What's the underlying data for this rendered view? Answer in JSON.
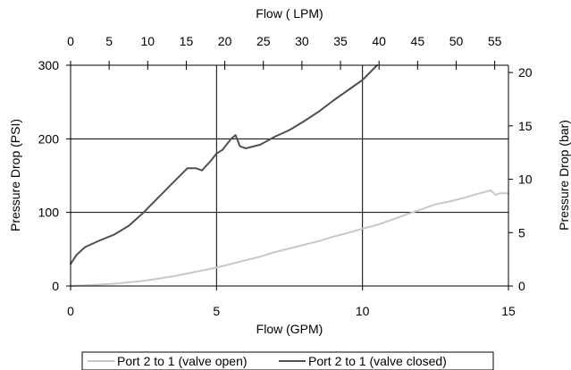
{
  "chart_data": {
    "type": "line",
    "title": "",
    "xlabel": "Flow (GPM)",
    "ylabel": "Pressure Drop (PSI)",
    "x2label": "Flow ( LPM)",
    "y2label": "Pressure Drop (bar)",
    "xlim": [
      0,
      15
    ],
    "ylim": [
      0,
      300
    ],
    "x2lim": [
      0,
      56.78
    ],
    "y2lim": [
      0,
      20.68
    ],
    "x_ticks": [
      "0",
      "5",
      "10",
      "15"
    ],
    "y_ticks": [
      "0",
      "100",
      "200",
      "300"
    ],
    "x2_ticks": [
      "0",
      "5",
      "10",
      "15",
      "20",
      "25",
      "30",
      "35",
      "40",
      "45",
      "50",
      "55"
    ],
    "y2_ticks": [
      "0",
      "5",
      "10",
      "15",
      "20"
    ],
    "grid": true,
    "legend_position": "bottom",
    "series": [
      {
        "name": "Port 2 to 1 (valve open)",
        "color": "#c8c8c8",
        "x": [
          0,
          0.5,
          1,
          1.5,
          2,
          2.5,
          3,
          3.5,
          4,
          4.5,
          5,
          5.5,
          6,
          6.5,
          7,
          7.5,
          8,
          8.5,
          9,
          9.5,
          10,
          10.5,
          11,
          11.5,
          12,
          12.5,
          13,
          13.5,
          14,
          14.4,
          14.55,
          14.7,
          15
        ],
        "y": [
          0,
          1,
          2,
          3,
          5,
          7,
          10,
          13,
          17,
          21,
          25,
          30,
          35,
          40,
          46,
          51,
          56,
          61,
          67,
          72,
          78,
          83,
          90,
          97,
          104,
          111,
          115,
          120,
          126,
          130,
          124,
          126,
          126
        ]
      },
      {
        "name": "Port 2 to 1 (valve closed)",
        "color": "#505050",
        "x": [
          0,
          0.2,
          0.5,
          1,
          1.5,
          2,
          2.5,
          3,
          3.5,
          4,
          4.3,
          4.5,
          4.8,
          5,
          5.2,
          5.5,
          5.65,
          5.8,
          6,
          6.5,
          7,
          7.5,
          8,
          8.5,
          9,
          9.5,
          10,
          10.5
        ],
        "y": [
          30,
          42,
          53,
          62,
          70,
          82,
          100,
          120,
          140,
          160,
          160,
          157,
          170,
          180,
          185,
          200,
          205,
          190,
          187,
          192,
          203,
          212,
          224,
          237,
          252,
          266,
          280,
          300
        ]
      }
    ]
  }
}
